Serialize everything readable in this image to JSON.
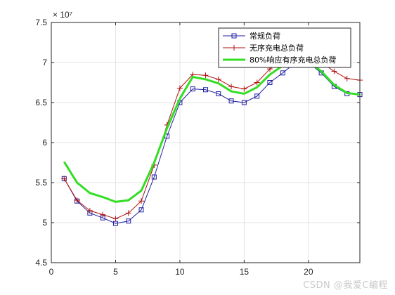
{
  "chart_data": {
    "type": "line",
    "x_ticks": [
      0,
      5,
      10,
      15,
      20
    ],
    "y_ticks": [
      4.5,
      5,
      5.5,
      6,
      6.5,
      7,
      7.5
    ],
    "y_exponent_label": "× 10⁷",
    "xlim": [
      0,
      24
    ],
    "ylim": [
      4.5,
      7.5
    ],
    "grid": true,
    "legend_position": "top-right",
    "x": [
      1,
      2,
      3,
      4,
      5,
      6,
      7,
      8,
      9,
      10,
      11,
      12,
      13,
      14,
      15,
      16,
      17,
      18,
      19,
      20,
      21,
      22,
      23,
      24
    ],
    "series": [
      {
        "name": "常规负荷",
        "color": "#1f1fa0",
        "marker": "square",
        "line_width": 1,
        "values": [
          5.55,
          5.27,
          5.12,
          5.06,
          4.99,
          5.02,
          5.16,
          5.57,
          6.08,
          6.5,
          6.67,
          6.66,
          6.61,
          6.52,
          6.5,
          6.58,
          6.75,
          6.87,
          7.0,
          7.0,
          6.87,
          6.7,
          6.61,
          6.6
        ]
      },
      {
        "name": "无序充电总负荷",
        "color": "#b01010",
        "marker": "plus",
        "line_width": 1,
        "values": [
          5.55,
          5.28,
          5.15,
          5.1,
          5.05,
          5.12,
          5.27,
          5.72,
          6.22,
          6.68,
          6.85,
          6.84,
          6.79,
          6.7,
          6.67,
          6.75,
          6.92,
          7.02,
          7.1,
          7.08,
          7.0,
          6.89,
          6.8,
          6.78
        ]
      },
      {
        "name": "80%响应有序充电总负荷",
        "color": "#33dd22",
        "marker": "none",
        "line_width": 3,
        "values": [
          5.76,
          5.5,
          5.37,
          5.32,
          5.26,
          5.28,
          5.4,
          5.75,
          6.18,
          6.55,
          6.82,
          6.79,
          6.74,
          6.64,
          6.61,
          6.69,
          6.85,
          6.96,
          7.04,
          7.02,
          6.89,
          6.72,
          6.62,
          6.6
        ]
      }
    ]
  },
  "watermark": "CSDN @我爱C编程"
}
